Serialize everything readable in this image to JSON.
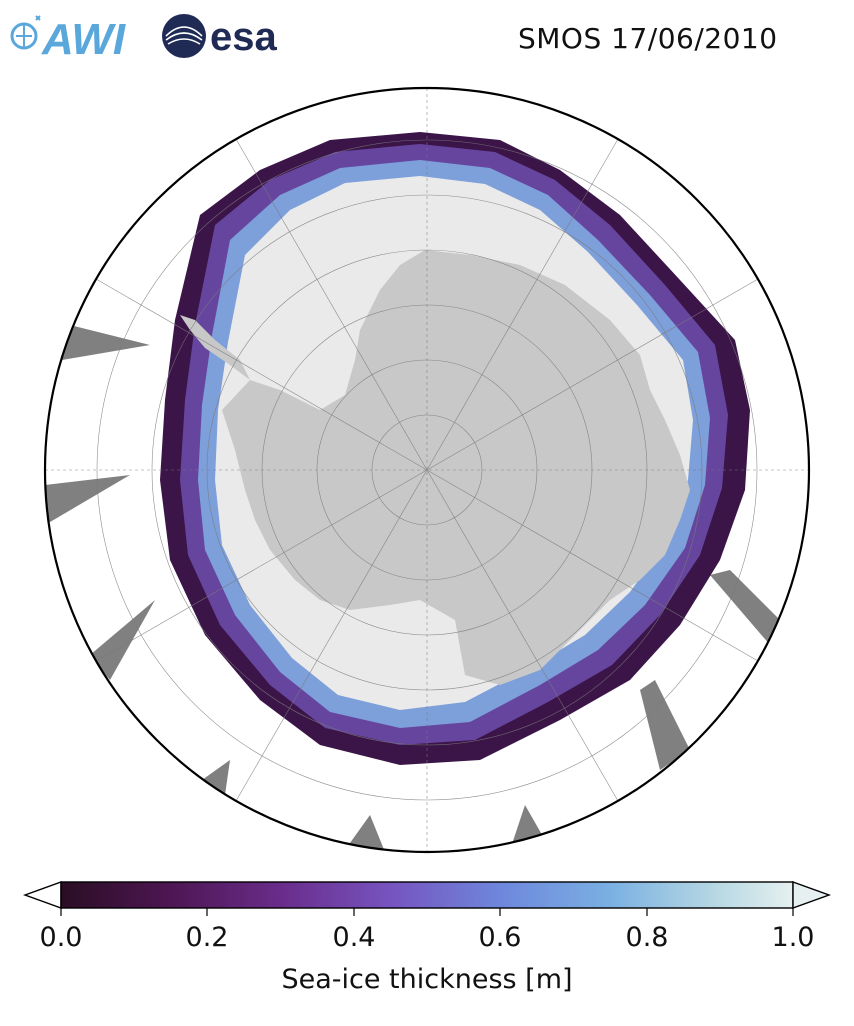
{
  "header": {
    "title": "SMOS 17/06/2010",
    "logo_awi": "AWI",
    "logo_esa": "esa"
  },
  "colors": {
    "land": "#c8c8c8",
    "thick_ice": "#eaeaea",
    "ocean": "#ffffff",
    "no_data": "#808080"
  },
  "colorbar": {
    "label": "Sea-ice thickness [m]",
    "ticks": [
      "0.0",
      "0.2",
      "0.4",
      "0.6",
      "0.8",
      "1.0"
    ],
    "range": [
      0.0,
      1.0
    ],
    "colormap": "dense_r",
    "extend": "both"
  }
}
